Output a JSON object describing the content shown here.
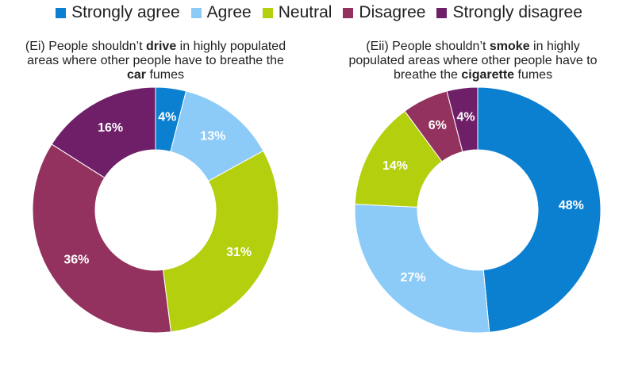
{
  "legend": [
    {
      "label": "Strongly agree",
      "color": "#0b7fd0"
    },
    {
      "label": "Agree",
      "color": "#8ccbf8"
    },
    {
      "label": "Neutral",
      "color": "#b3cf0e"
    },
    {
      "label": "Disagree",
      "color": "#93325f"
    },
    {
      "label": "Strongly disagree",
      "color": "#6e1f68"
    }
  ],
  "chart_data": [
    {
      "type": "pie",
      "title_parts": [
        {
          "text": "(Ei) People shouldn’t ",
          "bold": false
        },
        {
          "text": "drive",
          "bold": true
        },
        {
          "text": " in highly populated areas where other people have to breathe the ",
          "bold": false
        },
        {
          "text": "car",
          "bold": true
        },
        {
          "text": " fumes",
          "bold": false
        }
      ],
      "slices": [
        {
          "category": "Strongly agree",
          "value": 4,
          "label": "4%"
        },
        {
          "category": "Agree",
          "value": 13,
          "label": "13%"
        },
        {
          "category": "Neutral",
          "value": 31,
          "label": "31%"
        },
        {
          "category": "Disagree",
          "value": 36,
          "label": "36%"
        },
        {
          "category": "Strongly disagree",
          "value": 16,
          "label": "16%"
        }
      ]
    },
    {
      "type": "pie",
      "title_parts": [
        {
          "text": "(Eii) People shouldn’t ",
          "bold": false
        },
        {
          "text": "smoke",
          "bold": true
        },
        {
          "text": " in highly populated areas where other people have to breathe the ",
          "bold": false
        },
        {
          "text": "cigarette",
          "bold": true
        },
        {
          "text": " fumes",
          "bold": false
        }
      ],
      "slices": [
        {
          "category": "Strongly agree",
          "value": 48,
          "label": "48%"
        },
        {
          "category": "Agree",
          "value": 27,
          "label": "27%"
        },
        {
          "category": "Neutral",
          "value": 14,
          "label": "14%"
        },
        {
          "category": "Disagree",
          "value": 6,
          "label": "6%"
        },
        {
          "category": "Strongly disagree",
          "value": 4,
          "label": "4%"
        }
      ]
    }
  ]
}
